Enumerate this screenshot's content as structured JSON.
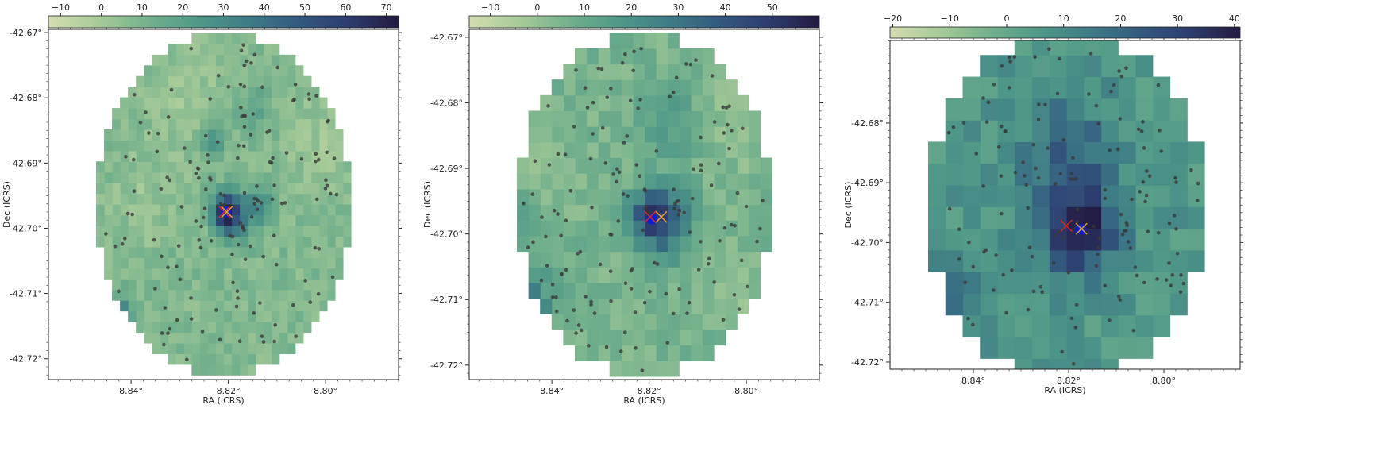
{
  "colormap": {
    "name": "crest_r",
    "stops": [
      "#d3ddb1",
      "#a7ca98",
      "#72b08c",
      "#4f9888",
      "#3e7c86",
      "#33597f",
      "#2d3d6e",
      "#221a40"
    ]
  },
  "colors": {
    "source_marker": "#3a3a3a",
    "red_cross": "#d62728",
    "orange_cross": "#e0a030",
    "blue_marker": "#1020c8"
  },
  "chart_data": [
    {
      "type": "heatmap",
      "description_id": "panel-1",
      "xlabel": "RA (ICRS)",
      "ylabel": "Dec (ICRS)",
      "xlim": [
        8.857,
        8.785
      ],
      "ylim": [
        -42.7232,
        -42.6695
      ],
      "x_ticks": [
        8.84,
        8.82,
        8.8
      ],
      "x_tick_labels": [
        "8.84°",
        "8.82°",
        "8.80°"
      ],
      "y_ticks": [
        -42.67,
        -42.68,
        -42.69,
        -42.7,
        -42.71,
        -42.72
      ],
      "y_tick_labels": [
        "-42.67°",
        "-42.68°",
        "-42.69°",
        "-42.70°",
        "-42.71°",
        "-42.72°"
      ],
      "colorbar": {
        "vmin": -13,
        "vmax": 73,
        "ticks": [
          -10,
          0,
          10,
          20,
          30,
          40,
          50,
          60,
          70
        ],
        "tick_labels": [
          "−10",
          "0",
          "10",
          "20",
          "30",
          "40",
          "50",
          "60",
          "70"
        ]
      },
      "grid": {
        "nx": 32,
        "ny": 32,
        "center_ra": 8.821,
        "center_dec": -42.6963,
        "radius_deg": 0.0262,
        "base_value": 8,
        "blobs": [
          {
            "ra": 8.8205,
            "dec": -42.6975,
            "amp": 60,
            "sigma": 0.0022
          },
          {
            "ra": 8.8235,
            "dec": -42.687,
            "amp": 22,
            "sigma": 0.0018
          },
          {
            "ra": 8.8135,
            "dec": -42.696,
            "amp": 20,
            "sigma": 0.002
          },
          {
            "ra": 8.817,
            "dec": -42.699,
            "amp": 14,
            "sigma": 0.0025
          },
          {
            "ra": 8.843,
            "dec": -42.713,
            "amp": 30,
            "sigma": 0.002
          },
          {
            "ra": 8.815,
            "dec": -42.682,
            "amp": 12,
            "sigma": 0.0025
          },
          {
            "ra": 8.846,
            "dec": -42.677,
            "amp": 8,
            "sigma": 0.003
          },
          {
            "ra": 8.828,
            "dec": -42.68,
            "amp": -6,
            "sigma": 0.006
          },
          {
            "ra": 8.8,
            "dec": -42.687,
            "amp": -7,
            "sigma": 0.005
          },
          {
            "ra": 8.838,
            "dec": -42.695,
            "amp": -5,
            "sigma": 0.005
          }
        ]
      },
      "sources": {
        "count": 150,
        "seed": 11,
        "clusters": [
          {
            "ra": 8.821,
            "dec": -42.697,
            "n": 8,
            "spread": 0.001
          },
          {
            "ra": 8.814,
            "dec": -42.696,
            "n": 5,
            "spread": 0.0012
          },
          {
            "ra": 8.817,
            "dec": -42.7,
            "n": 5,
            "spread": 0.0015
          }
        ]
      },
      "markers": [
        {
          "kind": "circle",
          "color": "blue_marker",
          "ra": 8.8205,
          "dec": -42.6975
        },
        {
          "kind": "x",
          "color": "red_cross",
          "ra": 8.8208,
          "dec": -42.6975
        },
        {
          "kind": "x",
          "color": "orange_cross",
          "ra": 8.8203,
          "dec": -42.6975
        }
      ]
    },
    {
      "type": "heatmap",
      "description_id": "panel-2",
      "xlabel": "RA (ICRS)",
      "ylabel": "Dec (ICRS)",
      "xlim": [
        8.857,
        8.785
      ],
      "ylim": [
        -42.7222,
        -42.6688
      ],
      "x_ticks": [
        8.84,
        8.82,
        8.8
      ],
      "x_tick_labels": [
        "8.84°",
        "8.82°",
        "8.80°"
      ],
      "y_ticks": [
        -42.67,
        -42.68,
        -42.69,
        -42.7,
        -42.71,
        -42.72
      ],
      "y_tick_labels": [
        "-42.67°",
        "-42.68°",
        "-42.69°",
        "-42.70°",
        "-42.71°",
        "-42.72°"
      ],
      "colorbar": {
        "vmin": -14.5,
        "vmax": 60,
        "ticks": [
          -10,
          0,
          10,
          20,
          30,
          40,
          50
        ],
        "tick_labels": [
          "−10",
          "0",
          "10",
          "20",
          "30",
          "40",
          "50"
        ]
      },
      "grid": {
        "nx": 22,
        "ny": 22,
        "center_ra": 8.821,
        "center_dec": -42.6955,
        "radius_deg": 0.0262,
        "base_value": 6,
        "blobs": [
          {
            "ra": 8.8195,
            "dec": -42.697,
            "amp": 45,
            "sigma": 0.003
          },
          {
            "ra": 8.813,
            "dec": -42.697,
            "amp": 12,
            "sigma": 0.003
          },
          {
            "ra": 8.816,
            "dec": -42.701,
            "amp": 12,
            "sigma": 0.003
          },
          {
            "ra": 8.845,
            "dec": -42.711,
            "amp": 24,
            "sigma": 0.0035
          },
          {
            "ra": 8.816,
            "dec": -42.683,
            "amp": 12,
            "sigma": 0.0035
          },
          {
            "ra": 8.85,
            "dec": -42.699,
            "amp": 10,
            "sigma": 0.004
          },
          {
            "ra": 8.8,
            "dec": -42.683,
            "amp": -7,
            "sigma": 0.005
          },
          {
            "ra": 8.802,
            "dec": -42.709,
            "amp": -5,
            "sigma": 0.004
          },
          {
            "ra": 8.842,
            "dec": -42.69,
            "amp": -5,
            "sigma": 0.005
          }
        ]
      },
      "sources": {
        "count": 150,
        "seed": 23,
        "clusters": [
          {
            "ra": 8.82,
            "dec": -42.697,
            "n": 8,
            "spread": 0.001
          },
          {
            "ra": 8.814,
            "dec": -42.696,
            "n": 4,
            "spread": 0.0012
          }
        ]
      },
      "markers": [
        {
          "kind": "circle",
          "color": "blue_marker",
          "ra": 8.8195,
          "dec": -42.6977
        },
        {
          "kind": "x",
          "color": "red_cross",
          "ra": 8.8198,
          "dec": -42.6974
        },
        {
          "kind": "x",
          "color": "orange_cross",
          "ra": 8.8175,
          "dec": -42.6974
        }
      ]
    },
    {
      "type": "heatmap",
      "description_id": "panel-3",
      "xlabel": "RA (ICRS)",
      "ylabel": "Dec (ICRS)",
      "xlim": [
        8.8575,
        8.784
      ],
      "ylim": [
        -42.7212,
        -42.6662
      ],
      "x_ticks": [
        8.84,
        8.82,
        8.8
      ],
      "x_tick_labels": [
        "8.84°",
        "8.82°",
        "8.80°"
      ],
      "y_ticks": [
        -42.68,
        -42.69,
        -42.7,
        -42.71,
        -42.72
      ],
      "y_tick_labels": [
        "-42.68°",
        "-42.69°",
        "-42.70°",
        "-42.71°",
        "-42.72°"
      ],
      "colorbar": {
        "vmin": -20.5,
        "vmax": 41,
        "ticks": [
          -20,
          -10,
          0,
          10,
          20,
          30,
          40
        ],
        "tick_labels": [
          "−20",
          "−10",
          "0",
          "10",
          "20",
          "30",
          "40"
        ]
      },
      "grid": {
        "nx": 16,
        "ny": 16,
        "center_ra": 8.8205,
        "center_dec": -42.694,
        "radius_deg": 0.029,
        "base_value": 6,
        "blobs": [
          {
            "ra": 8.8175,
            "dec": -42.698,
            "amp": 28,
            "sigma": 0.005
          },
          {
            "ra": 8.82,
            "dec": -42.691,
            "amp": 10,
            "sigma": 0.008
          },
          {
            "ra": 8.843,
            "dec": -42.708,
            "amp": 10,
            "sigma": 0.005
          },
          {
            "ra": 8.82,
            "dec": -42.683,
            "amp": 8,
            "sigma": 0.006
          },
          {
            "ra": 8.852,
            "dec": -42.688,
            "amp": -9,
            "sigma": 0.003
          },
          {
            "ra": 8.789,
            "dec": -42.687,
            "amp": -8,
            "sigma": 0.0025
          }
        ]
      },
      "sources": {
        "count": 140,
        "seed": 37,
        "clusters": [
          {
            "ra": 8.818,
            "dec": -42.6975,
            "n": 8,
            "spread": 0.0012
          },
          {
            "ra": 8.808,
            "dec": -42.698,
            "n": 5,
            "spread": 0.0015
          }
        ]
      },
      "markers": [
        {
          "kind": "circle",
          "color": "blue_marker",
          "ra": 8.8175,
          "dec": -42.6978
        },
        {
          "kind": "x",
          "color": "red_cross",
          "ra": 8.8205,
          "dec": -42.6972
        },
        {
          "kind": "x",
          "color": "orange_cross",
          "ra": 8.8173,
          "dec": -42.6977
        }
      ]
    }
  ]
}
